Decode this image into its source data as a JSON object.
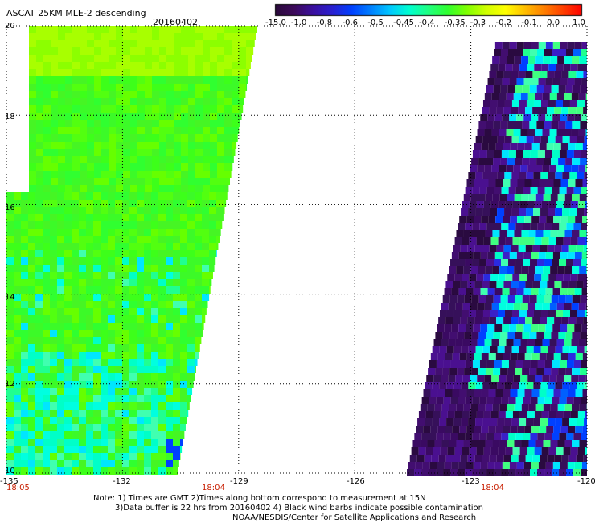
{
  "header": {
    "title": "ASCAT 25KM MLE-2 descending",
    "date": "20160402"
  },
  "colorbar": {
    "labels": [
      "-15.0",
      "-1.0",
      "-0.8",
      "-0.6",
      "-0.5",
      "-0.45",
      "-0.4",
      "-0.35",
      "-0.3",
      "-0.2",
      "-0.1",
      "0.0",
      "1.0"
    ],
    "colors": [
      "#2a0a3a",
      "#3d0a5a",
      "#3a10a0",
      "#2a20d0",
      "#0040ff",
      "#0080ff",
      "#00c8ff",
      "#00ffd0",
      "#20ff80",
      "#30ff30",
      "#80ff00",
      "#d0ff00",
      "#ffff00",
      "#ffc000",
      "#ff8000",
      "#ff4000",
      "#ff0000"
    ]
  },
  "map": {
    "lat_labels": [
      "20",
      "18",
      "16",
      "14",
      "12",
      "10"
    ],
    "lat_values": [
      20,
      18,
      16,
      14,
      12,
      10
    ],
    "lon_labels": [
      "-135",
      "-132",
      "-129",
      "-126",
      "-123",
      "-120"
    ],
    "lon_values": [
      -135,
      -132,
      -129,
      -126,
      -123,
      -120
    ],
    "time_labels": [
      "18:05",
      "18:04",
      "18:04"
    ]
  },
  "footer": {
    "note_line1": "Note: 1) Times are GMT 2)Times along bottom correspond to measurement at 15N",
    "note_line2": "3)Data buffer is 22 hrs from 20160402 4) Black wind barbs indicate possible contamination",
    "credit": "NOAA/NESDIS/Center for Satellite Applications and Research"
  }
}
